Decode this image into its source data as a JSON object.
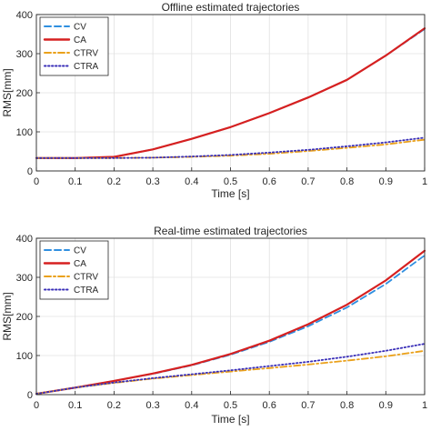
{
  "chart_data": [
    {
      "type": "line",
      "title": "Offline estimated trajectories",
      "xlabel": "Time [s]",
      "ylabel": "RMS[mm]",
      "xlim": [
        0,
        1
      ],
      "ylim": [
        0,
        400
      ],
      "xticks": [
        "0",
        "0.1",
        "0.2",
        "0.3",
        "0.4",
        "0.5",
        "0.6",
        "0.7",
        "0.8",
        "0.9",
        "1"
      ],
      "yticks": [
        "0",
        "100",
        "200",
        "300",
        "400"
      ],
      "grid": true,
      "legend_position": "top-left",
      "x": [
        0,
        0.1,
        0.2,
        0.3,
        0.4,
        0.5,
        0.6,
        0.7,
        0.8,
        0.9,
        1.0
      ],
      "series": [
        {
          "name": "CV",
          "color": "#2f8fe0",
          "style": "dashed",
          "values": [
            33,
            33,
            36,
            55,
            82,
            112,
            148,
            188,
            233,
            295,
            363
          ]
        },
        {
          "name": "CA",
          "color": "#d62020",
          "style": "solid",
          "values": [
            33,
            33,
            36,
            55,
            82,
            112,
            148,
            188,
            233,
            295,
            365
          ]
        },
        {
          "name": "CTRV",
          "color": "#eaa11b",
          "style": "dashdot",
          "values": [
            33,
            33,
            33,
            34,
            36,
            39,
            44,
            51,
            59,
            68,
            80
          ]
        },
        {
          "name": "CTRA",
          "color": "#3a2fb8",
          "style": "dotted",
          "values": [
            33,
            33,
            33,
            34,
            37,
            41,
            47,
            54,
            63,
            73,
            85
          ]
        }
      ]
    },
    {
      "type": "line",
      "title": "Real-time estimated trajectories",
      "xlabel": "Time [s]",
      "ylabel": "RMS[mm]",
      "xlim": [
        0,
        1
      ],
      "ylim": [
        0,
        400
      ],
      "xticks": [
        "0",
        "0.1",
        "0.2",
        "0.3",
        "0.4",
        "0.5",
        "0.6",
        "0.7",
        "0.8",
        "0.9",
        "1"
      ],
      "yticks": [
        "0",
        "100",
        "200",
        "300",
        "400"
      ],
      "grid": true,
      "legend_position": "top-left",
      "x": [
        0,
        0.1,
        0.2,
        0.3,
        0.4,
        0.5,
        0.6,
        0.7,
        0.8,
        0.9,
        1.0
      ],
      "series": [
        {
          "name": "CV",
          "color": "#2f8fe0",
          "style": "dashed",
          "values": [
            2,
            18,
            35,
            53,
            75,
            102,
            135,
            175,
            223,
            283,
            356
          ]
        },
        {
          "name": "CA",
          "color": "#d62020",
          "style": "solid",
          "values": [
            2,
            18,
            35,
            54,
            76,
            104,
            138,
            180,
            230,
            292,
            368
          ]
        },
        {
          "name": "CTRV",
          "color": "#eaa11b",
          "style": "dashdot",
          "values": [
            2,
            18,
            30,
            41,
            50,
            59,
            68,
            77,
            87,
            98,
            112
          ]
        },
        {
          "name": "CTRA",
          "color": "#3a2fb8",
          "style": "dotted",
          "values": [
            2,
            18,
            31,
            42,
            52,
            62,
            73,
            84,
            97,
            112,
            130
          ]
        }
      ]
    }
  ]
}
